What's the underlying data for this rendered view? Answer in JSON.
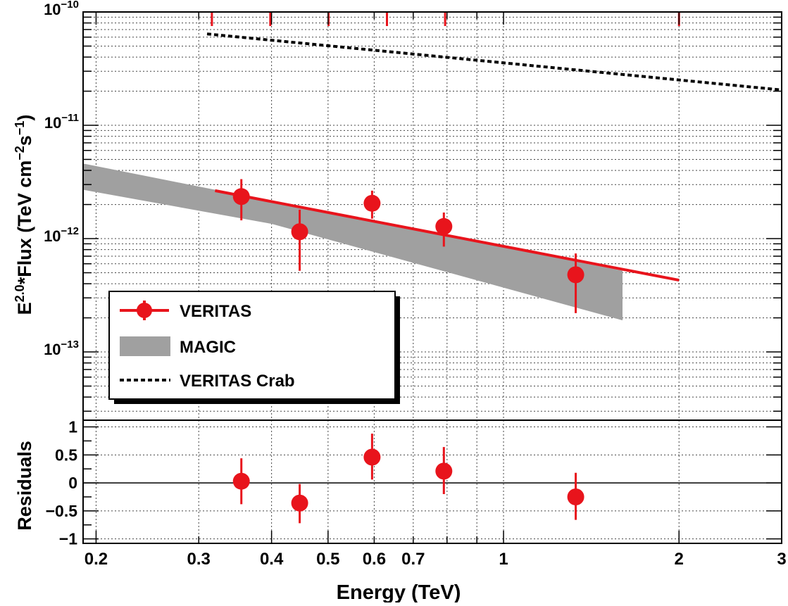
{
  "chart_data": [
    {
      "type": "scatter",
      "panel": "spectrum",
      "xlabel": "Energy (TeV)",
      "ylabel_parts": [
        "E",
        "2.0",
        "*Flux (TeV cm",
        "−2",
        "s",
        "−1",
        ")"
      ],
      "x_scale": "log",
      "y_scale": "log",
      "xlim": [
        0.19,
        3.0
      ],
      "ylim": [
        2.5e-14,
        1e-10
      ],
      "x_ticks": [
        0.2,
        0.3,
        0.4,
        0.5,
        0.6,
        0.7,
        1,
        2,
        3
      ],
      "x_tick_labels": [
        "0.2",
        "0.3",
        "0.4",
        "0.5",
        "0.6",
        "0.7",
        "1",
        "2",
        "3"
      ],
      "y_ticks": [
        1e-13,
        1e-12,
        1e-11,
        1e-10
      ],
      "y_tick_base": "10",
      "y_tick_exponents": [
        "−13",
        "−12",
        "−11",
        "−10"
      ],
      "grid": true,
      "bin_edges": [
        0.316,
        0.398,
        0.501,
        0.631,
        0.794,
        2.0
      ],
      "legend": {
        "position": "bottom-left",
        "entries": [
          "VERITAS",
          "MAGIC",
          "VERITAS Crab"
        ]
      },
      "series": [
        {
          "name": "VERITAS",
          "kind": "points_with_errors",
          "color": "#e8141c",
          "points": [
            {
              "x": 0.355,
              "y": 2.35e-12,
              "ylo": 1.45e-12,
              "yhi": 3.35e-12
            },
            {
              "x": 0.447,
              "y": 1.15e-12,
              "ylo": 5.2e-13,
              "yhi": 1.8e-12
            },
            {
              "x": 0.595,
              "y": 2.05e-12,
              "ylo": 1.5e-12,
              "yhi": 2.65e-12
            },
            {
              "x": 0.79,
              "y": 1.28e-12,
              "ylo": 8.5e-13,
              "yhi": 1.7e-12
            },
            {
              "x": 1.33,
              "y": 4.8e-13,
              "ylo": 2.2e-13,
              "yhi": 7.4e-13
            }
          ]
        },
        {
          "name": "VERITAS",
          "kind": "fit_line",
          "color": "#e8141c",
          "points": [
            [
              0.32,
              2.65e-12
            ],
            [
              2.0,
              4.3e-13
            ]
          ]
        },
        {
          "name": "MAGIC",
          "kind": "band",
          "color": "#a0a0a0",
          "upper": [
            [
              0.19,
              4.6e-12
            ],
            [
              1.6,
              5.2e-13
            ]
          ],
          "lower": [
            [
              0.19,
              2.7e-12
            ],
            [
              0.4,
              1.35e-12
            ],
            [
              1.6,
              1.9e-13
            ]
          ]
        },
        {
          "name": "VERITAS Crab",
          "kind": "dashed_line",
          "color": "#000000",
          "points": [
            [
              0.31,
              6.4e-11
            ],
            [
              3.0,
              2.05e-11
            ]
          ]
        }
      ]
    },
    {
      "type": "scatter",
      "panel": "residuals",
      "ylabel": "Residuals",
      "x_scale": "log",
      "xlim": [
        0.19,
        3.0
      ],
      "ylim": [
        -1.08,
        1.12
      ],
      "y_ticks": [
        -1,
        -0.5,
        0,
        0.5,
        1
      ],
      "y_tick_labels": [
        "−1",
        "−0.5",
        "0",
        "0.5",
        "1"
      ],
      "grid": true,
      "series": [
        {
          "name": "VERITAS",
          "kind": "points_with_errors",
          "color": "#e8141c",
          "points": [
            {
              "x": 0.355,
              "y": 0.03,
              "ylo": -0.38,
              "yhi": 0.44
            },
            {
              "x": 0.447,
              "y": -0.36,
              "ylo": -0.72,
              "yhi": -0.02
            },
            {
              "x": 0.595,
              "y": 0.46,
              "ylo": 0.06,
              "yhi": 0.88
            },
            {
              "x": 0.79,
              "y": 0.21,
              "ylo": -0.2,
              "yhi": 0.64
            },
            {
              "x": 1.33,
              "y": -0.25,
              "ylo": -0.66,
              "yhi": 0.18
            }
          ]
        }
      ]
    }
  ]
}
